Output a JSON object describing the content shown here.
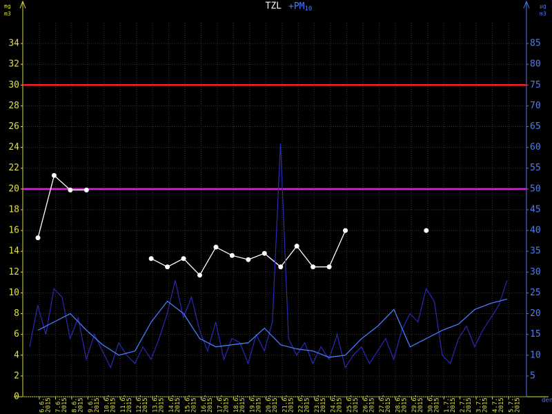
{
  "chart_data": {
    "type": "line",
    "title": "TZL",
    "title2": "+PM",
    "title2_sub": "10",
    "y_unit_top": "mg",
    "y_unit_bottom": "m3",
    "y2_unit_top": "µg",
    "y2_unit_bottom": "m3",
    "x_unit": "den",
    "year": "2015",
    "categories": [
      "6.6.",
      "7.6.",
      "8.6.",
      "9.6.",
      "10.6.",
      "11.6.",
      "12.6.",
      "13.6.",
      "14.6.",
      "15.6.",
      "16.6.",
      "17.6.",
      "18.6.",
      "19.6.",
      "20.6.",
      "21.6.",
      "22.6.",
      "23.6.",
      "24.6.",
      "25.6.",
      "26.6.",
      "27.6.",
      "28.6.",
      "29.6.",
      "30.6.",
      "1.7.",
      "2.7.",
      "3.7.",
      "4.7.",
      "5.7."
    ],
    "ylim": [
      0,
      35
    ],
    "yticks": [
      0,
      2,
      4,
      6,
      8,
      10,
      12,
      14,
      16,
      18,
      20,
      22,
      24,
      26,
      28,
      30,
      32,
      34
    ],
    "y2lim": [
      0,
      87.5
    ],
    "y2ticks": [
      5,
      10,
      15,
      20,
      25,
      30,
      35,
      40,
      45,
      50,
      55,
      60,
      65,
      70,
      75,
      80,
      85
    ],
    "grid": true,
    "thresholds": [
      {
        "value": 30,
        "color": "#ff2020"
      },
      {
        "value": 20,
        "color": "#e020e0"
      }
    ],
    "series": [
      {
        "name": "TZL",
        "color": "#ffffff",
        "values": [
          15.3,
          21.3,
          19.9,
          19.9,
          null,
          null,
          null,
          13.3,
          12.5,
          13.3,
          11.7,
          14.4,
          13.6,
          13.2,
          13.8,
          12.5,
          14.5,
          12.5,
          12.5,
          16.0,
          null,
          null,
          null,
          null,
          16.0,
          null,
          null,
          null,
          null,
          null
        ]
      },
      {
        "name": "+PM",
        "color": "#4a7cff",
        "axis": "y2",
        "values": [
          16,
          18,
          20,
          16,
          12.5,
          10,
          11,
          18,
          23,
          20,
          14,
          12,
          12.5,
          13,
          16.5,
          12.5,
          11.5,
          11,
          9.5,
          10,
          14,
          17,
          21,
          12,
          14,
          16,
          17.5,
          21,
          22.5,
          23.5
        ],
        "raw_color": "#2a2ab8",
        "raw_values": [
          12,
          22,
          15,
          26,
          24,
          14,
          19,
          9,
          15,
          11,
          7,
          13,
          10,
          8,
          12,
          9,
          14,
          20,
          28,
          19,
          24,
          16,
          11,
          18,
          9,
          14,
          13,
          8,
          15,
          11,
          18,
          61,
          14,
          10,
          13,
          8,
          12,
          9,
          15,
          7,
          10,
          12,
          8,
          11,
          14,
          9,
          16,
          20,
          18,
          26,
          23,
          10,
          8,
          14,
          17,
          12,
          16,
          19,
          22,
          28
        ]
      }
    ]
  }
}
